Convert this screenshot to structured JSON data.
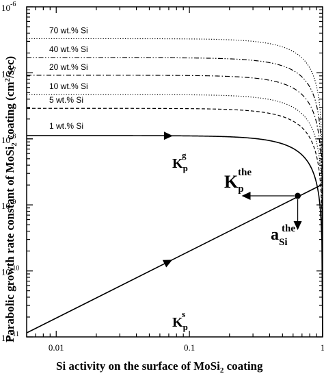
{
  "chart_data": {
    "type": "line",
    "xlabel": "Si activity on the surface of MoSi",
    "xlabel_sub": "2",
    "xlabel_tail": " coating",
    "ylabel": "Parabolic growth rate constant of MoSi",
    "ylabel_sub": "2",
    "ylabel_mid": " coating (cm",
    "ylabel_sup": "2",
    "ylabel_tail": "/sec)",
    "x_scale": "log",
    "y_scale": "log",
    "xlim": [
      0.006,
      1
    ],
    "ylim": [
      1e-11,
      1e-06
    ],
    "x_ticks": [
      {
        "value": 0.01,
        "label": "0.01"
      },
      {
        "value": 0.1,
        "label": "0.1"
      },
      {
        "value": 1,
        "label": "1"
      }
    ],
    "y_ticks": [
      {
        "value": 1e-11,
        "base": "10",
        "exp": "-11"
      },
      {
        "value": 1e-10,
        "base": "10",
        "exp": "-10"
      },
      {
        "value": 1e-09,
        "base": "10",
        "exp": "-9"
      },
      {
        "value": 1e-08,
        "base": "10",
        "exp": "-8"
      },
      {
        "value": 1e-07,
        "base": "10",
        "exp": "-7"
      },
      {
        "value": 1e-06,
        "base": "10",
        "exp": "-6"
      }
    ],
    "grid": false,
    "series": [
      {
        "name": "70 wt.% Si",
        "style": "dotted",
        "k0": 3.3e-07
      },
      {
        "name": "40 wt.% Si",
        "style": "dash-dot-dot",
        "k0": 1.7e-07
      },
      {
        "name": "20 wt.% Si",
        "style": "dash-dot",
        "k0": 9.2e-08
      },
      {
        "name": "10 wt.% Si",
        "style": "dotted",
        "k0": 4.7e-08
      },
      {
        "name": "5 wt.% Si",
        "style": "dashed",
        "k0": 2.9e-08
      },
      {
        "name": "1 wt.% Si",
        "style": "solid",
        "k0": 1.12e-08
      }
    ],
    "ks_line": {
      "points": [
        {
          "x": 0.006,
          "y": 1.15e-11
        },
        {
          "x": 1,
          "y": 2.05e-09
        }
      ]
    },
    "intersection": {
      "x": 0.65,
      "y": 1.37e-09
    },
    "annotations": {
      "kg_main": "K",
      "kg_sub": "p",
      "kg_sup": "g",
      "ks_main": "K",
      "ks_sub": "p",
      "ks_sup": "s",
      "kthe_main": "K",
      "kthe_sub": "p",
      "kthe_sup": "the",
      "athe_main": "a",
      "athe_sub": "Si",
      "athe_sup": "the"
    }
  }
}
